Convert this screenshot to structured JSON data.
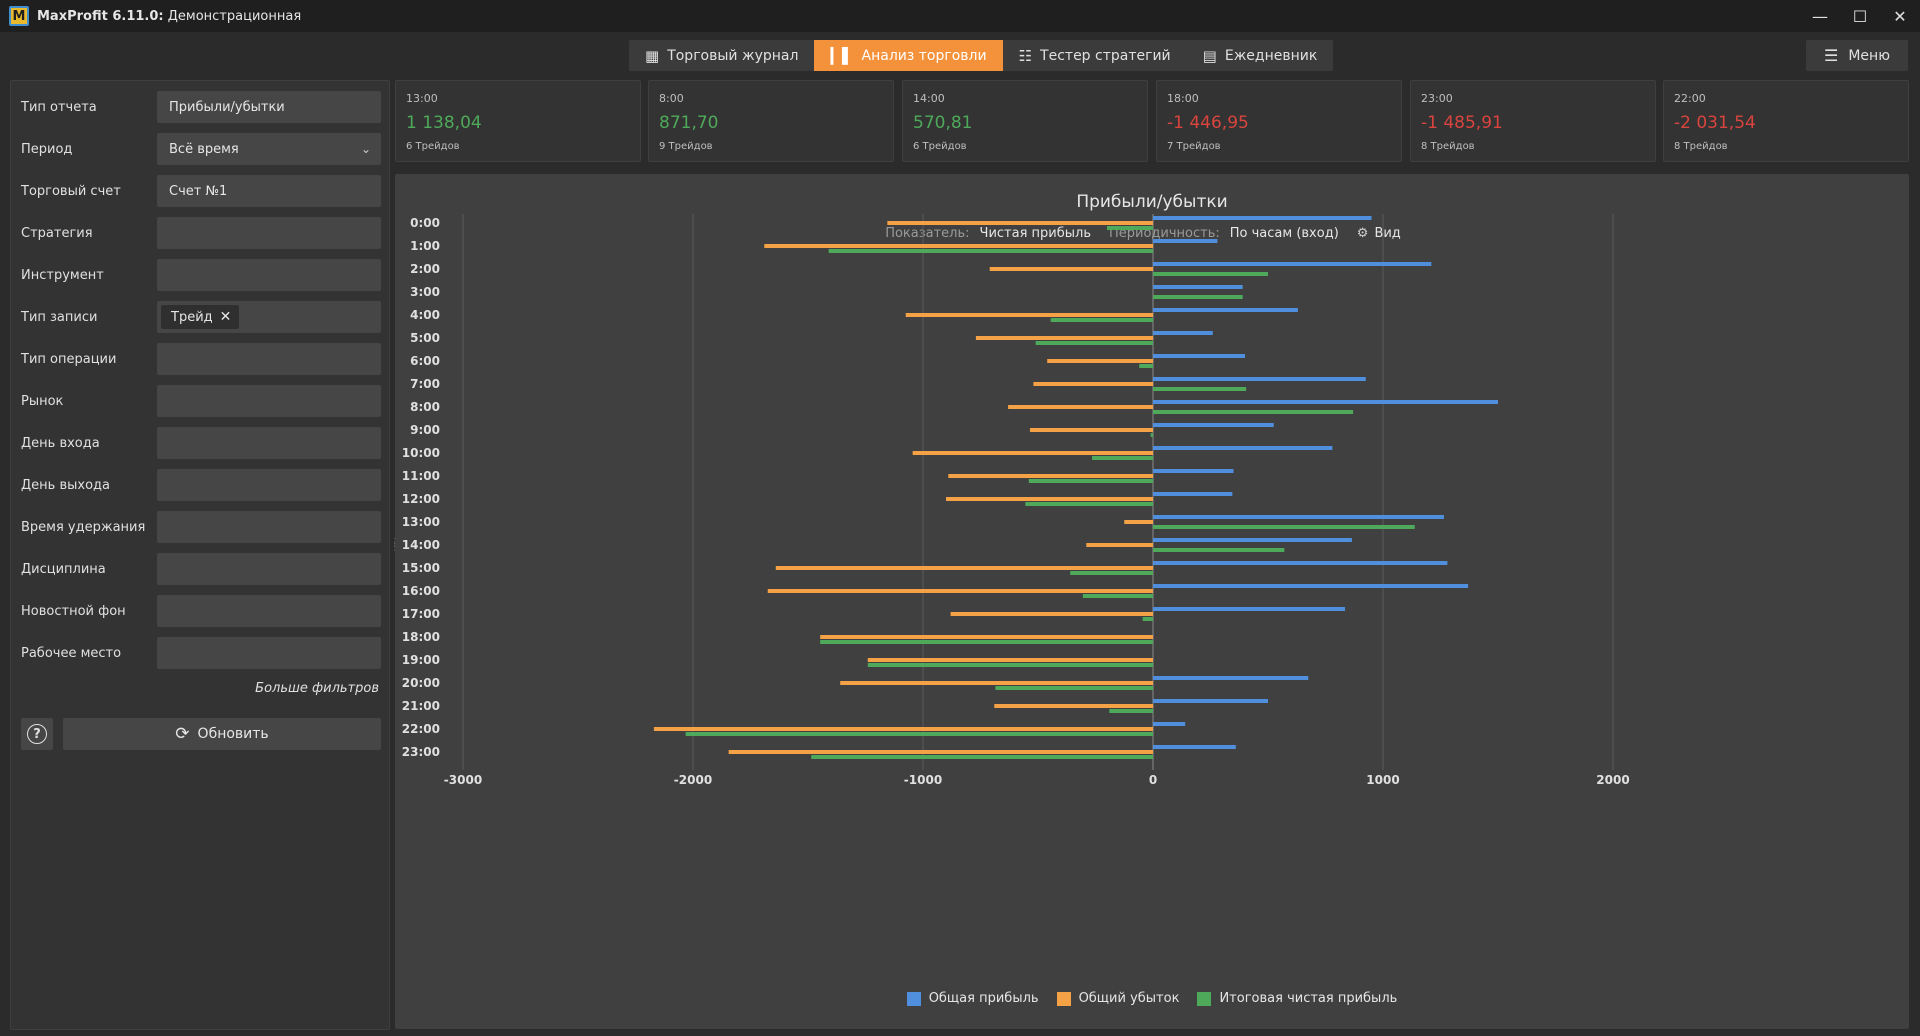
{
  "window": {
    "app_name": "MaxProfit 6.11.0:",
    "subtitle": "Демонстрационная",
    "logo_letter": "M"
  },
  "nav": {
    "tabs": [
      {
        "label": "Торговый журнал",
        "icon": "table-icon",
        "active": false
      },
      {
        "label": "Анализ торговли",
        "icon": "bar-chart-icon",
        "active": true
      },
      {
        "label": "Тестер стратегий",
        "icon": "sliders-icon",
        "active": false
      },
      {
        "label": "Ежедневник",
        "icon": "calendar-icon",
        "active": false
      }
    ],
    "menu_label": "Меню"
  },
  "filters": {
    "rows": [
      {
        "label": "Тип отчета",
        "value": "Прибыли/убытки"
      },
      {
        "label": "Период",
        "value": "Всё время"
      },
      {
        "label": "Торговый счет",
        "value": "Счет №1"
      },
      {
        "label": "Стратегия",
        "value": ""
      },
      {
        "label": "Инструмент",
        "value": ""
      },
      {
        "label": "Тип записи",
        "value": ""
      },
      {
        "label": "Тип операции",
        "value": ""
      },
      {
        "label": "Рынок",
        "value": ""
      },
      {
        "label": "День входа",
        "value": ""
      },
      {
        "label": "День выхода",
        "value": ""
      },
      {
        "label": "Время удержания",
        "value": ""
      },
      {
        "label": "Дисциплина",
        "value": ""
      },
      {
        "label": "Новостной фон",
        "value": ""
      },
      {
        "label": "Рабочее место",
        "value": ""
      }
    ],
    "chip_value": "Трейд",
    "more_filters": "Больше фильтров",
    "refresh_label": "Обновить",
    "help_glyph": "?"
  },
  "cards": [
    {
      "time": "13:00",
      "value": "1 138,04",
      "trades": "6 Трейдов",
      "positive": true
    },
    {
      "time": "8:00",
      "value": "871,70",
      "trades": "9 Трейдов",
      "positive": true
    },
    {
      "time": "14:00",
      "value": "570,81",
      "trades": "6 Трейдов",
      "positive": true
    },
    {
      "time": "18:00",
      "value": "-1 446,95",
      "trades": "7 Трейдов",
      "positive": false
    },
    {
      "time": "23:00",
      "value": "-1 485,91",
      "trades": "8 Трейдов",
      "positive": false
    },
    {
      "time": "22:00",
      "value": "-2 031,54",
      "trades": "8 Трейдов",
      "positive": false
    }
  ],
  "chart": {
    "title": "Прибыли/убытки",
    "metric_key": "Показатель:",
    "metric_value": "Чистая прибыль",
    "period_key": "Периодичность:",
    "period_value": "По часам (вход)",
    "view_label": "Вид"
  },
  "chart_data": {
    "type": "bar",
    "orientation": "horizontal",
    "categories": [
      "0:00",
      "1:00",
      "2:00",
      "3:00",
      "4:00",
      "5:00",
      "6:00",
      "7:00",
      "8:00",
      "9:00",
      "10:00",
      "11:00",
      "12:00",
      "13:00",
      "14:00",
      "15:00",
      "16:00",
      "17:00",
      "18:00",
      "19:00",
      "20:00",
      "21:00",
      "22:00",
      "23:00"
    ],
    "series": [
      {
        "name": "Общая прибыль",
        "color": "#4f8fde",
        "values": [
          950,
          280,
          1210,
          390,
          630,
          260,
          400,
          925,
          1500,
          525,
          780,
          350,
          345,
          1265,
          865,
          1280,
          1370,
          835,
          0,
          0,
          675,
          500,
          140,
          360
        ]
      },
      {
        "name": "Общий убыток",
        "color": "#f4a245",
        "values": [
          -1155,
          -1690,
          -710,
          0,
          -1075,
          -770,
          -460,
          -520,
          -630,
          -535,
          -1045,
          -890,
          -900,
          -125,
          -290,
          -1640,
          -1675,
          -880,
          -1447,
          -1240,
          -1360,
          -690,
          -2170,
          -1845
        ]
      },
      {
        "name": "Итоговая чистая прибыль",
        "color": "#4ea95a",
        "values": [
          -200,
          -1410,
          500,
          390,
          -445,
          -510,
          -60,
          405,
          870,
          -10,
          -265,
          -540,
          -555,
          1138,
          571,
          -360,
          -305,
          -45,
          -1447,
          -1240,
          -685,
          -190,
          -2032,
          -1486
        ]
      }
    ],
    "xlim": [
      -3000,
      2000
    ],
    "xticks": [
      -3000,
      -2000,
      -1000,
      0,
      1000,
      2000
    ],
    "grid": true,
    "legend_position": "bottom"
  }
}
